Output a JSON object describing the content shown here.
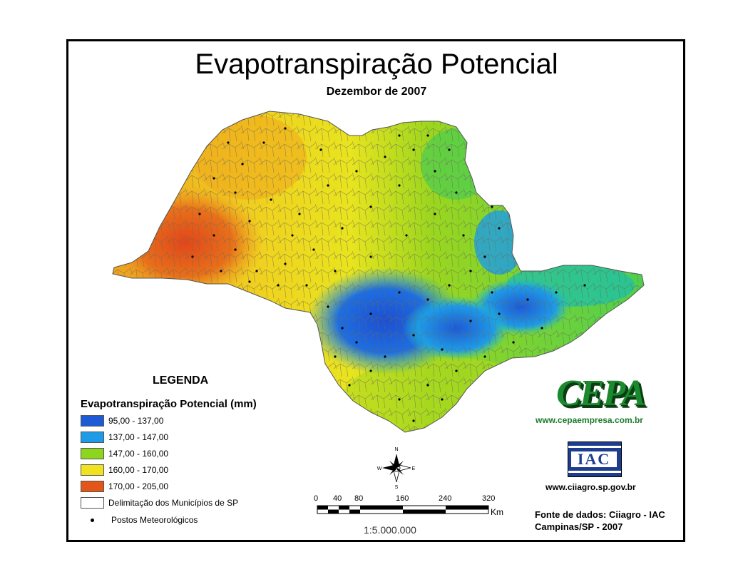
{
  "title": "Evapotranspiração Potencial",
  "subtitle": "Dezembor de 2007",
  "legend": {
    "heading": "LEGENDA",
    "subheading": "Evapotranspiração Potencial (mm)",
    "classes": [
      {
        "label": "95,00 - 137,00",
        "color": "#1e5ad6"
      },
      {
        "label": "137,00 - 147,00",
        "color": "#1e9be6"
      },
      {
        "label": "147,00 - 160,00",
        "color": "#8ed61e"
      },
      {
        "label": "160,00 - 170,00",
        "color": "#f0e21e"
      },
      {
        "label": "170,00 - 205,00",
        "color": "#e2561a"
      }
    ],
    "boundary_label": "Delimitação dos Municípios de SP",
    "stations_label": "Postos Meteorológicos"
  },
  "compass": {
    "n": "N",
    "s": "S",
    "e": "E",
    "w": "W"
  },
  "scale": {
    "ticks": [
      "0",
      "40",
      "80",
      "160",
      "240",
      "320"
    ],
    "unit": "Km",
    "ratio": "1:5.000.000"
  },
  "logos": {
    "cepa_text": "CEPA",
    "cepa_url": "www.cepaempresa.com.br",
    "iac_text": "IAC",
    "iac_url": "www.ciiagro.sp.gov.br"
  },
  "source": {
    "line1": "Fonte de dados: Ciiagro - IAC",
    "line2": "Campinas/SP - 2007"
  }
}
